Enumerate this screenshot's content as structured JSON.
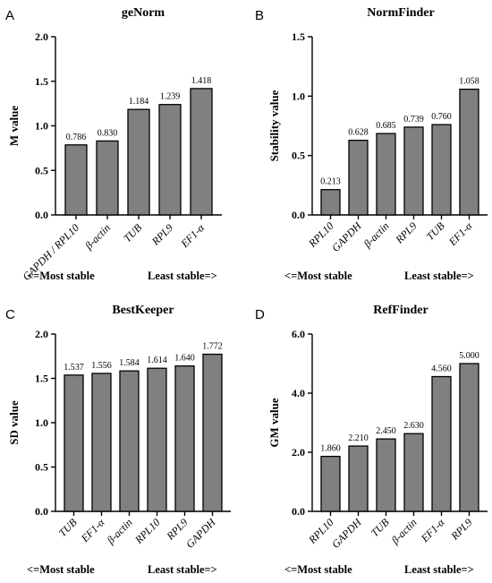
{
  "chart_data": [
    {
      "type": "bar",
      "panel": "A",
      "title": "geNorm",
      "ylabel": "M value",
      "ylim": [
        0,
        2.0
      ],
      "yticks": [
        "0.0",
        "0.5",
        "1.0",
        "1.5",
        "2.0"
      ],
      "categories": [
        "GAPDH / RPL10",
        "β-actin",
        "TUB",
        "RPL9",
        "EF1-α"
      ],
      "values": [
        0.786,
        0.83,
        1.184,
        1.239,
        1.418
      ],
      "labels": [
        "0.786",
        "0.830",
        "1.184",
        "1.239",
        "1.418"
      ],
      "note_left": "<=Most stable",
      "note_right": "Least stable=>"
    },
    {
      "type": "bar",
      "panel": "B",
      "title": "NormFinder",
      "ylabel": "Stability value",
      "ylim": [
        0,
        1.5
      ],
      "yticks": [
        "0.0",
        "0.5",
        "1.0",
        "1.5"
      ],
      "categories": [
        "RPL10",
        "GAPDH",
        "β-actin",
        "RPL9",
        "TUB",
        "EF1-α"
      ],
      "values": [
        0.213,
        0.628,
        0.685,
        0.739,
        0.76,
        1.058
      ],
      "labels": [
        "0.213",
        "0.628",
        "0.685",
        "0.739",
        "0.760",
        "1.058"
      ],
      "note_left": "<=Most stable",
      "note_right": "Least stable=>"
    },
    {
      "type": "bar",
      "panel": "C",
      "title": "BestKeeper",
      "ylabel": "SD value",
      "ylim": [
        0,
        2.0
      ],
      "yticks": [
        "0.0",
        "0.5",
        "1.0",
        "1.5",
        "2.0"
      ],
      "categories": [
        "TUB",
        "EF1-α",
        "β-actin",
        "RPL10",
        "RPL9",
        "GAPDH"
      ],
      "values": [
        1.537,
        1.556,
        1.584,
        1.614,
        1.64,
        1.772
      ],
      "labels": [
        "1.537",
        "1.556",
        "1.584",
        "1.614",
        "1.640",
        "1.772"
      ],
      "note_left": "<=Most stable",
      "note_right": "Least stable=>"
    },
    {
      "type": "bar",
      "panel": "D",
      "title": "RefFinder",
      "ylabel": "GM value",
      "ylim": [
        0,
        6.0
      ],
      "yticks": [
        "0.0",
        "2.0",
        "4.0",
        "6.0"
      ],
      "categories": [
        "RPL10",
        "GAPDH",
        "TUB",
        "β-actin",
        "EF1-α",
        "RPL9"
      ],
      "values": [
        1.86,
        2.21,
        2.45,
        2.63,
        4.56,
        5.0
      ],
      "labels": [
        "1.860",
        "2.210",
        "2.450",
        "2.630",
        "4.560",
        "5.000"
      ],
      "note_left": "<=Most stable",
      "note_right": "Least stable=>"
    }
  ],
  "style": {
    "bar_color": "#808080",
    "axis_color": "#000000"
  }
}
